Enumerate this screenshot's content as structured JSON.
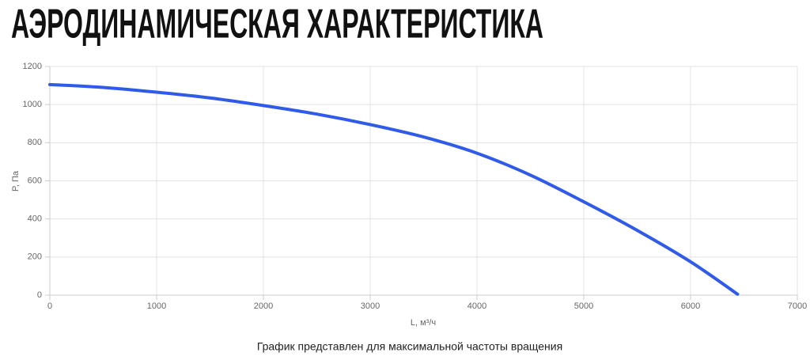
{
  "chart_data": {
    "type": "line",
    "title": "АЭРОДИНАМИЧЕСКАЯ ХАРАКТЕРИСТИКА",
    "xlabel": "L, м³/ч",
    "ylabel": "P, Па",
    "caption": "График представлен для максимальной частоты вращения",
    "x": [
      0,
      500,
      1000,
      1500,
      2000,
      2500,
      3000,
      3500,
      4000,
      4500,
      5000,
      5500,
      6000,
      6440
    ],
    "series": [
      {
        "color": "#2f5be8",
        "values": [
          1105,
          1090,
          1065,
          1035,
          995,
          950,
          895,
          830,
          745,
          630,
          490,
          340,
          175,
          5
        ]
      }
    ],
    "xlim": [
      0,
      7000
    ],
    "xticks": [
      0,
      1000,
      2000,
      3000,
      4000,
      5000,
      6000,
      7000
    ],
    "ylim": [
      0,
      1200
    ],
    "yticks": [
      0,
      200,
      400,
      600,
      800,
      1000,
      1200
    ],
    "grid": true
  }
}
